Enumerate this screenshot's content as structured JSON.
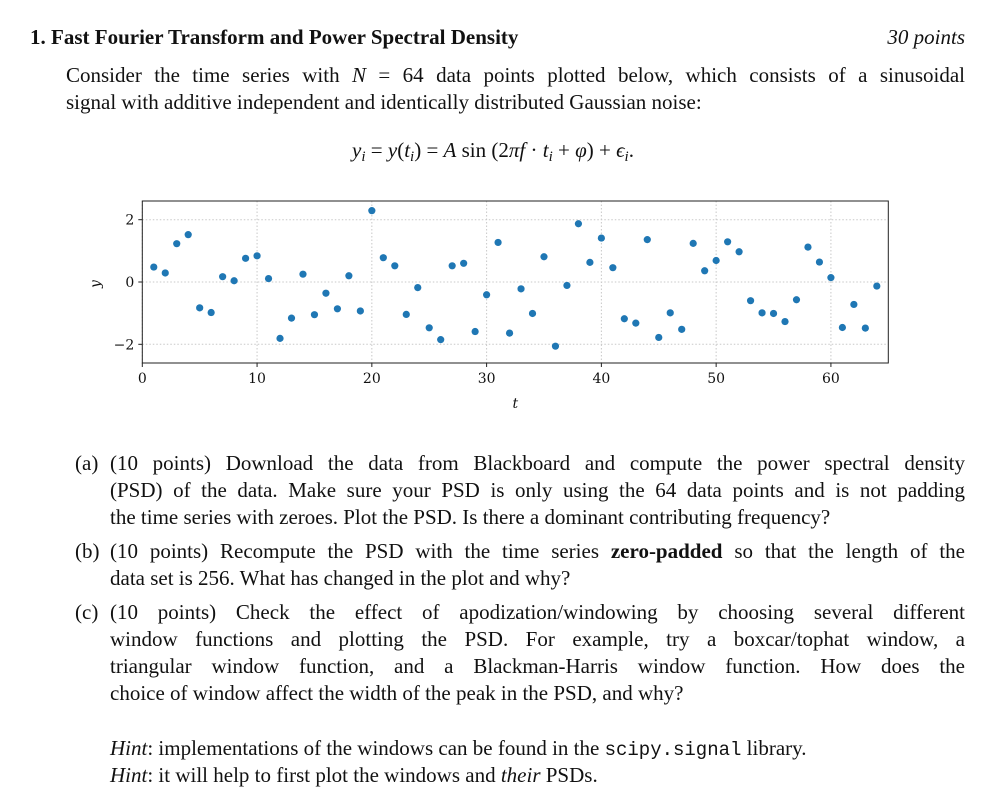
{
  "problem": {
    "number": "1.",
    "title": "Fast Fourier Transform and Power Spectral Density",
    "points": "30 points",
    "intro_lines": [
      [
        {
          "t": "Consider the time series with "
        },
        {
          "t": "N",
          "s": "i"
        },
        {
          "t": " = 64 data points plotted below, which consists of a sinusoidal"
        }
      ],
      [
        {
          "t": "signal with additive independent and identically distributed Gaussian noise:"
        }
      ]
    ],
    "equation": [
      {
        "t": "y",
        "s": "i"
      },
      {
        "t": "i",
        "s": "i sub"
      },
      {
        "t": " = "
      },
      {
        "t": "y",
        "s": "i"
      },
      {
        "t": "("
      },
      {
        "t": "t",
        "s": "i"
      },
      {
        "t": "i",
        "s": "i sub"
      },
      {
        "t": ") = "
      },
      {
        "t": "A",
        "s": "i"
      },
      {
        "t": " sin (2"
      },
      {
        "t": "π",
        "s": "i"
      },
      {
        "t": "f",
        "s": "i"
      },
      {
        "t": " · "
      },
      {
        "t": "t",
        "s": "i"
      },
      {
        "t": "i",
        "s": "i sub"
      },
      {
        "t": " + "
      },
      {
        "t": "φ",
        "s": "i"
      },
      {
        "t": ") + "
      },
      {
        "t": "ϵ",
        "s": "i"
      },
      {
        "t": "i",
        "s": "i sub"
      },
      {
        "t": "."
      }
    ]
  },
  "parts": [
    {
      "label": "(a)",
      "lines": [
        [
          {
            "t": "(10 points) Download the data from Blackboard and compute the power spectral density"
          }
        ],
        [
          {
            "t": "(PSD) of the data. Make sure your PSD is only using the 64 data points and is not padding"
          }
        ],
        [
          {
            "t": "the time series with zeroes. Plot the PSD. Is there a dominant contributing frequency?"
          }
        ]
      ]
    },
    {
      "label": "(b)",
      "lines": [
        [
          {
            "t": "(10 points) Recompute the PSD with the time series "
          },
          {
            "t": "zero-padded",
            "s": "b"
          },
          {
            "t": " so that the length of the"
          }
        ],
        [
          {
            "t": "data set is 256. What has changed in the plot and why?"
          }
        ]
      ]
    },
    {
      "label": "(c)",
      "lines": [
        [
          {
            "t": "(10 points) Check the effect of apodization/windowing by choosing several different"
          }
        ],
        [
          {
            "t": "window functions and plotting the PSD. For example, try a boxcar/tophat window, a"
          }
        ],
        [
          {
            "t": "triangular window function, and a Blackman-Harris window function. How does the"
          }
        ],
        [
          {
            "t": "choice of window affect the width of the peak in the PSD, and why?"
          }
        ]
      ]
    }
  ],
  "hints": [
    [
      {
        "t": "Hint",
        "s": "i"
      },
      {
        "t": ": implementations of the windows can be found in the "
      },
      {
        "t": "scipy.signal",
        "s": "m"
      },
      {
        "t": " library."
      }
    ],
    [
      {
        "t": "Hint",
        "s": "i"
      },
      {
        "t": ": it will help to first plot the windows and "
      },
      {
        "t": "their",
        "s": "i"
      },
      {
        "t": " PSDs."
      }
    ]
  ],
  "chart_data": {
    "type": "scatter",
    "xlabel": "t",
    "ylabel": "y",
    "xlim": [
      0,
      65
    ],
    "ylim": [
      -2.6,
      2.6
    ],
    "xticks": [
      0,
      10,
      20,
      30,
      40,
      50,
      60
    ],
    "yticks": [
      -2,
      0,
      2
    ],
    "xtick_labels": [
      "0",
      "10",
      "20",
      "30",
      "40",
      "50",
      "60"
    ],
    "ytick_labels": [
      "−2",
      "0",
      "2"
    ],
    "grid": true,
    "color": "#1f77b4",
    "x": [
      1,
      2,
      3,
      4,
      5,
      6,
      7,
      8,
      9,
      10,
      11,
      12,
      13,
      14,
      15,
      16,
      17,
      18,
      19,
      20,
      21,
      22,
      23,
      24,
      25,
      26,
      27,
      28,
      29,
      30,
      31,
      32,
      33,
      34,
      35,
      36,
      37,
      38,
      39,
      40,
      41,
      42,
      43,
      44,
      45,
      46,
      47,
      48,
      49,
      50,
      51,
      52,
      53,
      54,
      55,
      56,
      57,
      58,
      59,
      60,
      61,
      62,
      63,
      64
    ],
    "y": [
      0.48,
      0.29,
      1.23,
      1.52,
      -0.83,
      -0.98,
      0.17,
      0.04,
      0.76,
      0.84,
      0.11,
      -1.81,
      -1.16,
      0.25,
      -1.05,
      -0.36,
      -0.86,
      0.2,
      -0.93,
      2.29,
      0.78,
      0.52,
      -1.04,
      -0.18,
      -1.47,
      -1.85,
      0.52,
      0.6,
      -1.59,
      -0.41,
      1.27,
      -1.64,
      -0.22,
      -1.01,
      0.81,
      -2.06,
      -0.11,
      1.87,
      0.63,
      1.41,
      0.46,
      -1.18,
      -1.32,
      1.36,
      -1.78,
      -0.99,
      -1.52,
      1.24,
      0.36,
      0.69,
      1.29,
      0.97,
      -0.6,
      -0.99,
      -1.01,
      -1.27,
      -0.57,
      1.12,
      0.64,
      0.14,
      -1.46,
      -0.72,
      -1.48,
      -0.13
    ]
  }
}
